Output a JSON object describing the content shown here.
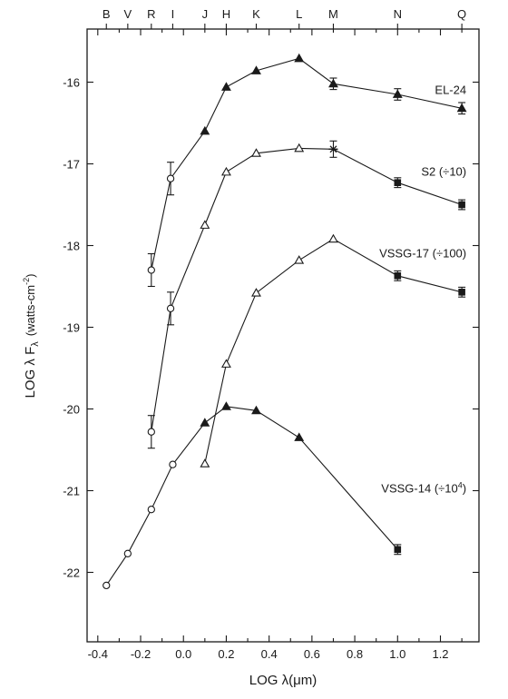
{
  "chart_data": {
    "type": "line",
    "title": "",
    "xlabel": "LOG λ(μm)",
    "ylabel": "LOG λ F",
    "ylabel_sub": "λ",
    "ylabel_units_pre": "(watts-cm",
    "ylabel_units_exp": "-2",
    "ylabel_units_post": ")",
    "xlim": [
      -0.45,
      1.38
    ],
    "ylim": [
      -22.85,
      -15.35
    ],
    "grid": false,
    "xticks": [
      {
        "v": -0.4,
        "label": "-0.4"
      },
      {
        "v": -0.3,
        "label": ""
      },
      {
        "v": -0.2,
        "label": "-0.2"
      },
      {
        "v": -0.1,
        "label": ""
      },
      {
        "v": 0.0,
        "label": "0.0"
      },
      {
        "v": 0.1,
        "label": ""
      },
      {
        "v": 0.2,
        "label": "0.2"
      },
      {
        "v": 0.3,
        "label": ""
      },
      {
        "v": 0.4,
        "label": "0.4"
      },
      {
        "v": 0.5,
        "label": ""
      },
      {
        "v": 0.6,
        "label": "0.6"
      },
      {
        "v": 0.7,
        "label": ""
      },
      {
        "v": 0.8,
        "label": "0.8"
      },
      {
        "v": 0.9,
        "label": ""
      },
      {
        "v": 1.0,
        "label": "1.0"
      },
      {
        "v": 1.1,
        "label": ""
      },
      {
        "v": 1.2,
        "label": "1.2"
      },
      {
        "v": 1.3,
        "label": ""
      }
    ],
    "yticks": [
      {
        "v": -16,
        "label": "-16"
      },
      {
        "v": -17,
        "label": "-17"
      },
      {
        "v": -18,
        "label": "-18"
      },
      {
        "v": -19,
        "label": "-19"
      },
      {
        "v": -20,
        "label": "-20"
      },
      {
        "v": -21,
        "label": "-21"
      },
      {
        "v": -22,
        "label": "-22"
      }
    ],
    "top_bands": [
      {
        "label": "B",
        "x": -0.36
      },
      {
        "label": "V",
        "x": -0.26
      },
      {
        "label": "R",
        "x": -0.15
      },
      {
        "label": "I",
        "x": -0.05
      },
      {
        "label": "J",
        "x": 0.1
      },
      {
        "label": "H",
        "x": 0.2
      },
      {
        "label": "K",
        "x": 0.34
      },
      {
        "label": "L",
        "x": 0.54
      },
      {
        "label": "M",
        "x": 0.7
      },
      {
        "label": "N",
        "x": 1.0
      },
      {
        "label": "Q",
        "x": 1.3
      }
    ],
    "series": [
      {
        "name": "EL-24",
        "label_pos": [
          1.3,
          -16.1
        ],
        "points": [
          {
            "x": -0.15,
            "y": -18.3,
            "m": "open-circle",
            "err": 0.2
          },
          {
            "x": -0.06,
            "y": -17.18,
            "m": "open-circle",
            "err": 0.2
          },
          {
            "x": 0.1,
            "y": -16.6,
            "m": "filled-triangle"
          },
          {
            "x": 0.2,
            "y": -16.06,
            "m": "filled-triangle"
          },
          {
            "x": 0.34,
            "y": -15.86,
            "m": "filled-triangle"
          },
          {
            "x": 0.54,
            "y": -15.71,
            "m": "filled-triangle"
          },
          {
            "x": 0.7,
            "y": -16.02,
            "m": "filled-triangle",
            "err": 0.07
          },
          {
            "x": 1.0,
            "y": -16.15,
            "m": "filled-triangle",
            "err": 0.07
          },
          {
            "x": 1.3,
            "y": -16.32,
            "m": "filled-triangle",
            "err": 0.07
          }
        ]
      },
      {
        "name": "S2 (÷10)",
        "label_pos": [
          1.3,
          -17.1
        ],
        "points": [
          {
            "x": -0.15,
            "y": -20.28,
            "m": "open-circle",
            "err": 0.2
          },
          {
            "x": -0.06,
            "y": -18.77,
            "m": "open-circle",
            "err": 0.2
          },
          {
            "x": 0.1,
            "y": -17.75,
            "m": "open-triangle"
          },
          {
            "x": 0.2,
            "y": -17.1,
            "m": "open-triangle"
          },
          {
            "x": 0.34,
            "y": -16.87,
            "m": "open-triangle"
          },
          {
            "x": 0.54,
            "y": -16.81,
            "m": "open-triangle"
          },
          {
            "x": 0.7,
            "y": -16.82,
            "m": "star",
            "err": 0.1
          },
          {
            "x": 1.0,
            "y": -17.23,
            "m": "filled-square",
            "err": 0.06
          },
          {
            "x": 1.3,
            "y": -17.5,
            "m": "filled-square",
            "err": 0.06
          }
        ]
      },
      {
        "name": "VSSG-17 (÷100)",
        "label_pos": [
          1.3,
          -18.1
        ],
        "points": [
          {
            "x": 0.1,
            "y": -20.67,
            "m": "open-triangle"
          },
          {
            "x": 0.2,
            "y": -19.45,
            "m": "open-triangle"
          },
          {
            "x": 0.34,
            "y": -18.58,
            "m": "open-triangle"
          },
          {
            "x": 0.54,
            "y": -18.18,
            "m": "open-triangle"
          },
          {
            "x": 0.7,
            "y": -17.92,
            "m": "open-triangle"
          },
          {
            "x": 1.0,
            "y": -18.37,
            "m": "filled-square",
            "err": 0.06
          },
          {
            "x": 1.3,
            "y": -18.57,
            "m": "filled-square",
            "err": 0.06
          }
        ]
      },
      {
        "name": "VSSG-14 (÷10",
        "name_sup": "4",
        "name_post": ")",
        "label_pos": [
          1.3,
          -20.98
        ],
        "points": [
          {
            "x": -0.36,
            "y": -22.16,
            "m": "open-circle"
          },
          {
            "x": -0.26,
            "y": -21.77,
            "m": "open-circle"
          },
          {
            "x": -0.15,
            "y": -21.23,
            "m": "open-circle"
          },
          {
            "x": -0.05,
            "y": -20.68,
            "m": "open-circle"
          },
          {
            "x": 0.1,
            "y": -20.17,
            "m": "filled-triangle"
          },
          {
            "x": 0.2,
            "y": -19.97,
            "m": "filled-triangle"
          },
          {
            "x": 0.34,
            "y": -20.02,
            "m": "filled-triangle"
          },
          {
            "x": 0.54,
            "y": -20.35,
            "m": "filled-triangle"
          },
          {
            "x": 1.0,
            "y": -21.72,
            "m": "filled-square",
            "err": 0.06
          }
        ]
      }
    ]
  }
}
